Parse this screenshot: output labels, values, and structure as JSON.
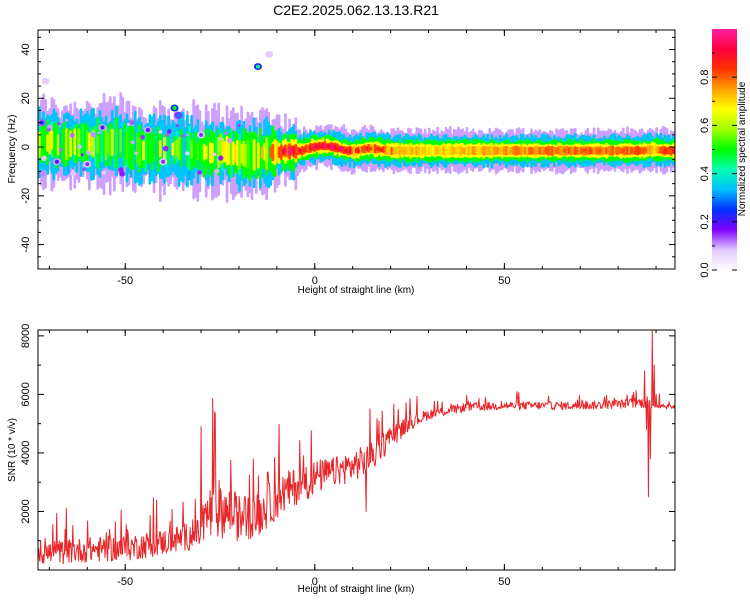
{
  "page": {
    "title": "C2E2.2025.062.13.13.R21"
  },
  "chart_data": [
    {
      "type": "heatmap",
      "name": "spectrogram",
      "xlabel": "Height of straight line (km)",
      "ylabel": "Frequency (Hz)",
      "xlim": [
        -73,
        95
      ],
      "ylim": [
        -50,
        48
      ],
      "xticks": [
        -50,
        0,
        50
      ],
      "yticks": [
        -40,
        -20,
        0,
        20,
        40
      ],
      "grid": false,
      "colorbar": {
        "label": "Normalized spectral amplitude",
        "range": [
          0,
          1
        ],
        "ticks": [
          "0.0",
          "0.2",
          "0.4",
          "0.6",
          "0.8"
        ],
        "colors": [
          "#ffffff",
          "#e0c8ff",
          "#8000ff",
          "#0030ff",
          "#00c0ff",
          "#00ffb0",
          "#00ff00",
          "#a0ff00",
          "#ffff00",
          "#ffa000",
          "#ff3000",
          "#ff0040",
          "#ff20a0"
        ]
      },
      "ridge": [
        {
          "x": -73,
          "f": 1.0,
          "a": 0.5
        },
        {
          "x": -70,
          "f": 2.5,
          "a": 0.5
        },
        {
          "x": -67,
          "f": 0.5,
          "a": 0.45
        },
        {
          "x": -64,
          "f": 1.5,
          "a": 0.5
        },
        {
          "x": -61,
          "f": 2.0,
          "a": 0.48
        },
        {
          "x": -58,
          "f": 0.8,
          "a": 0.5
        },
        {
          "x": -55,
          "f": 1.5,
          "a": 0.5
        },
        {
          "x": -52,
          "f": 2.5,
          "a": 0.45
        },
        {
          "x": -49,
          "f": 0.0,
          "a": 0.5
        },
        {
          "x": -46,
          "f": -1.5,
          "a": 0.5
        },
        {
          "x": -43,
          "f": -0.5,
          "a": 0.48
        },
        {
          "x": -40,
          "f": -1.0,
          "a": 0.5
        },
        {
          "x": -37,
          "f": -0.5,
          "a": 0.5
        },
        {
          "x": -34,
          "f": -1.0,
          "a": 0.45
        },
        {
          "x": -31,
          "f": -2.0,
          "a": 0.5
        },
        {
          "x": -28,
          "f": -2.5,
          "a": 0.5
        },
        {
          "x": -25,
          "f": -1.5,
          "a": 0.55
        },
        {
          "x": -22,
          "f": -2.5,
          "a": 0.55
        },
        {
          "x": -19,
          "f": -3.0,
          "a": 0.55
        },
        {
          "x": -16,
          "f": -3.0,
          "a": 0.6
        },
        {
          "x": -13,
          "f": -2.5,
          "a": 0.6
        },
        {
          "x": -10,
          "f": -2.0,
          "a": 0.7
        },
        {
          "x": -7,
          "f": -1.5,
          "a": 0.85
        },
        {
          "x": -4,
          "f": -1.5,
          "a": 0.85
        },
        {
          "x": -1,
          "f": 0.0,
          "a": 0.9
        },
        {
          "x": 2,
          "f": 0.5,
          "a": 0.95
        },
        {
          "x": 5,
          "f": 0.0,
          "a": 0.9
        },
        {
          "x": 8,
          "f": -1.5,
          "a": 0.85
        },
        {
          "x": 11,
          "f": -1.5,
          "a": 0.8
        },
        {
          "x": 14,
          "f": -0.5,
          "a": 0.8
        },
        {
          "x": 17,
          "f": -1.0,
          "a": 0.8
        },
        {
          "x": 20,
          "f": -1.5,
          "a": 0.75
        },
        {
          "x": 25,
          "f": -1.5,
          "a": 0.72
        },
        {
          "x": 30,
          "f": -1.5,
          "a": 0.7
        },
        {
          "x": 40,
          "f": -1.5,
          "a": 0.72
        },
        {
          "x": 50,
          "f": -1.5,
          "a": 0.75
        },
        {
          "x": 60,
          "f": -1.5,
          "a": 0.78
        },
        {
          "x": 70,
          "f": -1.5,
          "a": 0.78
        },
        {
          "x": 80,
          "f": -1.5,
          "a": 0.78
        },
        {
          "x": 86,
          "f": -1.5,
          "a": 0.8
        },
        {
          "x": 89,
          "f": -1.0,
          "a": 0.7
        },
        {
          "x": 92,
          "f": -1.5,
          "a": 0.85
        },
        {
          "x": 95,
          "f": -1.5,
          "a": 0.85
        }
      ],
      "blobs": [
        {
          "x": -37,
          "f": 16,
          "a": 0.5
        },
        {
          "x": -36,
          "f": 13,
          "a": 0.3
        },
        {
          "x": -15,
          "f": 33,
          "a": 0.45
        },
        {
          "x": -12,
          "f": 38,
          "a": 0.08
        },
        {
          "x": -72,
          "f": 10,
          "a": 0.25
        },
        {
          "x": -68,
          "f": -6,
          "a": 0.2
        },
        {
          "x": -56,
          "f": 8,
          "a": 0.2
        },
        {
          "x": -44,
          "f": 7,
          "a": 0.2
        },
        {
          "x": -30,
          "f": 5,
          "a": 0.15
        },
        {
          "x": -71,
          "f": 27,
          "a": 0.08
        },
        {
          "x": -60,
          "f": -7,
          "a": 0.15
        },
        {
          "x": -40,
          "f": -6,
          "a": 0.15
        }
      ]
    },
    {
      "type": "line",
      "name": "snr",
      "xlabel": "Height of straight line (km)",
      "ylabel": "SNR (10 * v/v)",
      "xlim": [
        -73,
        95
      ],
      "ylim": [
        0,
        8200
      ],
      "xticks": [
        -50,
        0,
        50
      ],
      "yticks": [
        2000,
        4000,
        6000,
        8000
      ],
      "color": "#e8262a",
      "grid": false,
      "envelope": [
        {
          "x": -73,
          "y": 500,
          "spread": 800
        },
        {
          "x": -60,
          "y": 650,
          "spread": 850
        },
        {
          "x": -50,
          "y": 700,
          "spread": 900
        },
        {
          "x": -40,
          "y": 900,
          "spread": 900
        },
        {
          "x": -30,
          "y": 1200,
          "spread": 1000
        },
        {
          "x": -28,
          "y": 1800,
          "spread": 2200
        },
        {
          "x": -25,
          "y": 2000,
          "spread": 2000
        },
        {
          "x": -20,
          "y": 1700,
          "spread": 1600
        },
        {
          "x": -15,
          "y": 1800,
          "spread": 1500
        },
        {
          "x": -10,
          "y": 2400,
          "spread": 1500
        },
        {
          "x": -5,
          "y": 2800,
          "spread": 1300
        },
        {
          "x": 0,
          "y": 3100,
          "spread": 1200
        },
        {
          "x": 5,
          "y": 3300,
          "spread": 1000
        },
        {
          "x": 10,
          "y": 3500,
          "spread": 1100
        },
        {
          "x": 15,
          "y": 3800,
          "spread": 1000
        },
        {
          "x": 20,
          "y": 4500,
          "spread": 800
        },
        {
          "x": 25,
          "y": 5000,
          "spread": 500
        },
        {
          "x": 30,
          "y": 5300,
          "spread": 350
        },
        {
          "x": 40,
          "y": 5550,
          "spread": 300
        },
        {
          "x": 50,
          "y": 5600,
          "spread": 280
        },
        {
          "x": 60,
          "y": 5600,
          "spread": 280
        },
        {
          "x": 70,
          "y": 5600,
          "spread": 280
        },
        {
          "x": 80,
          "y": 5650,
          "spread": 300
        },
        {
          "x": 86,
          "y": 5700,
          "spread": 350
        },
        {
          "x": 95,
          "y": 5550,
          "spread": 150
        }
      ],
      "features": [
        {
          "x": -27,
          "y": 5850
        },
        {
          "x": -26.5,
          "y": 5400
        },
        {
          "x": -30,
          "y": 4900
        },
        {
          "x": 14.5,
          "y": 5500
        },
        {
          "x": 13.5,
          "y": 2000
        },
        {
          "x": 87,
          "y": 6800
        },
        {
          "x": 87.5,
          "y": 4800
        },
        {
          "x": 88,
          "y": 2500
        },
        {
          "x": 88.5,
          "y": 3800
        },
        {
          "x": 89,
          "y": 8200
        },
        {
          "x": 89.5,
          "y": 7000
        },
        {
          "x": 90,
          "y": 6000
        }
      ]
    }
  ]
}
